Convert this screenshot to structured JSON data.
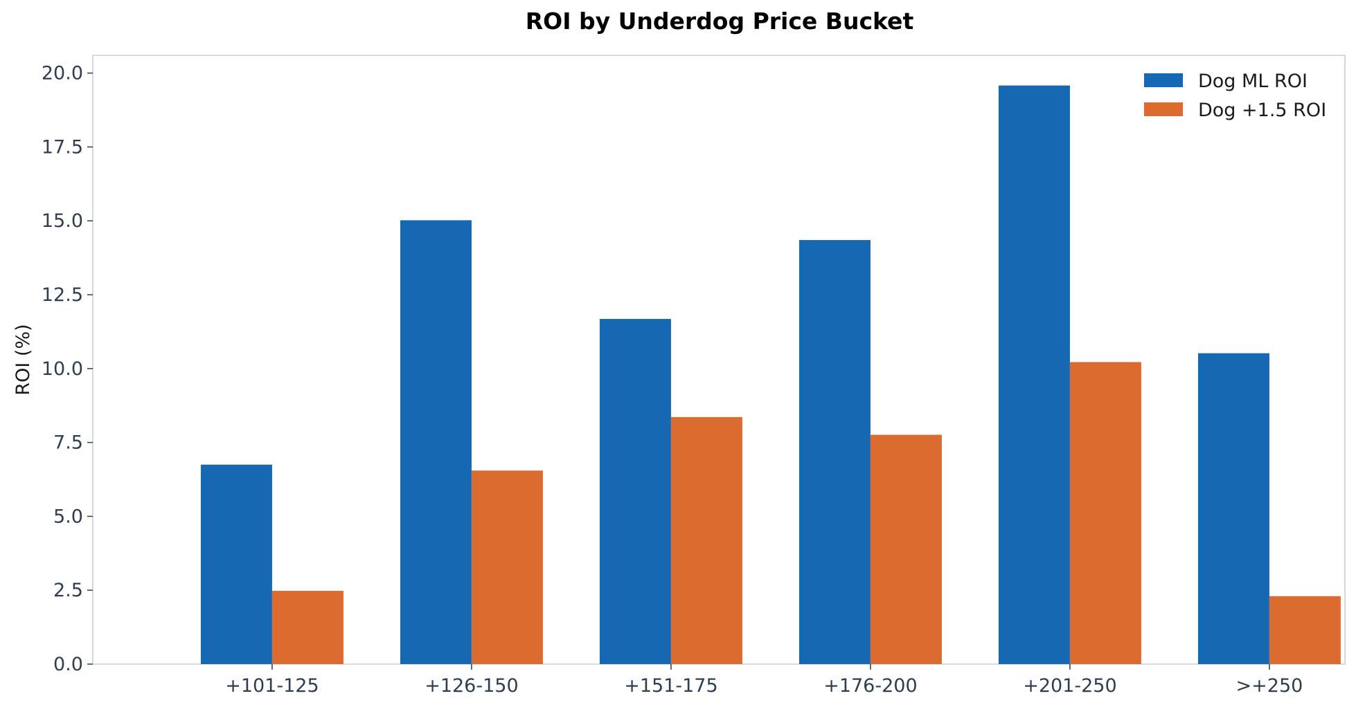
{
  "chart_data": {
    "type": "bar",
    "title": "ROI by Underdog Price Bucket",
    "xlabel": "",
    "ylabel": "ROI (%)",
    "ylim": [
      0,
      20.6
    ],
    "yticks": [
      "0.0",
      "2.5",
      "5.0",
      "7.5",
      "10.0",
      "12.5",
      "15.0",
      "17.5",
      "20.0"
    ],
    "categories": [
      "+101-125",
      "+126-150",
      "+151-175",
      "+176-200",
      "+201-250",
      ">+250"
    ],
    "series": [
      {
        "name": "Dog ML ROI",
        "color": "#1668b3",
        "values": [
          6.75,
          15.02,
          11.68,
          14.35,
          19.58,
          10.52
        ]
      },
      {
        "name": "Dog +1.5 ROI",
        "color": "#dc6b30",
        "values": [
          2.48,
          6.55,
          8.36,
          7.76,
          10.22,
          2.3
        ]
      }
    ],
    "grid": false,
    "legend_position": "top-right"
  }
}
